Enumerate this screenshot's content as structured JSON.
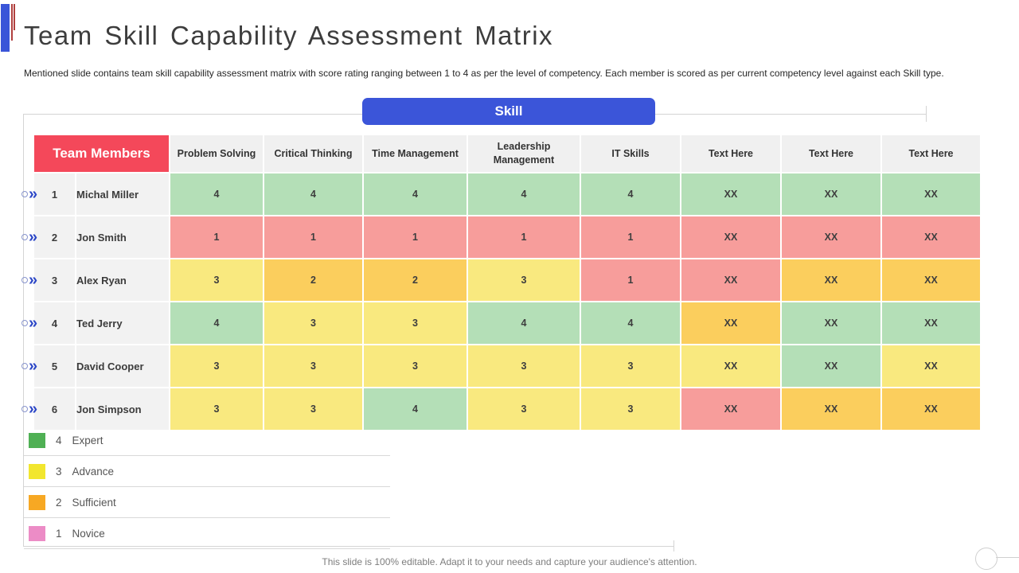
{
  "slide": {
    "title": "Team Skill Capability Assessment Matrix",
    "subtitle": "Mentioned slide contains team skill capability assessment matrix with score rating ranging between 1 to 4 as per the level of competency. Each member is scored as per current competency level against each Skill type.",
    "footer_note": "This slide is 100% editable. Adapt it to your needs and capture your audience's attention."
  },
  "skill_banner": {
    "label": "Skill"
  },
  "table": {
    "members_header": "Team Members",
    "columns": [
      "Problem Solving",
      "Critical Thinking",
      "Time Management",
      "Leadership Management",
      "IT Skills",
      "Text Here",
      "Text Here",
      "Text Here"
    ],
    "rows": [
      {
        "num": "1",
        "name": "Michal Miller",
        "cells": [
          {
            "value": "4",
            "level": "expert"
          },
          {
            "value": "4",
            "level": "expert"
          },
          {
            "value": "4",
            "level": "expert"
          },
          {
            "value": "4",
            "level": "expert"
          },
          {
            "value": "4",
            "level": "expert"
          },
          {
            "value": "XX",
            "level": "expert"
          },
          {
            "value": "XX",
            "level": "expert"
          },
          {
            "value": "XX",
            "level": "expert"
          }
        ]
      },
      {
        "num": "2",
        "name": "Jon Smith",
        "cells": [
          {
            "value": "1",
            "level": "novice"
          },
          {
            "value": "1",
            "level": "novice"
          },
          {
            "value": "1",
            "level": "novice"
          },
          {
            "value": "1",
            "level": "novice"
          },
          {
            "value": "1",
            "level": "novice"
          },
          {
            "value": "XX",
            "level": "novice"
          },
          {
            "value": "XX",
            "level": "novice"
          },
          {
            "value": "XX",
            "level": "novice"
          }
        ]
      },
      {
        "num": "3",
        "name": "Alex Ryan",
        "cells": [
          {
            "value": "3",
            "level": "advance"
          },
          {
            "value": "2",
            "level": "sufficient"
          },
          {
            "value": "2",
            "level": "sufficient"
          },
          {
            "value": "3",
            "level": "advance"
          },
          {
            "value": "1",
            "level": "novice"
          },
          {
            "value": "XX",
            "level": "novice"
          },
          {
            "value": "XX",
            "level": "sufficient"
          },
          {
            "value": "XX",
            "level": "sufficient"
          }
        ]
      },
      {
        "num": "4",
        "name": "Ted Jerry",
        "cells": [
          {
            "value": "4",
            "level": "expert"
          },
          {
            "value": "3",
            "level": "advance"
          },
          {
            "value": "3",
            "level": "advance"
          },
          {
            "value": "4",
            "level": "expert"
          },
          {
            "value": "4",
            "level": "expert"
          },
          {
            "value": "XX",
            "level": "sufficient"
          },
          {
            "value": "XX",
            "level": "expert"
          },
          {
            "value": "XX",
            "level": "expert"
          }
        ]
      },
      {
        "num": "5",
        "name": "David Cooper",
        "cells": [
          {
            "value": "3",
            "level": "advance"
          },
          {
            "value": "3",
            "level": "advance"
          },
          {
            "value": "3",
            "level": "advance"
          },
          {
            "value": "3",
            "level": "advance"
          },
          {
            "value": "3",
            "level": "advance"
          },
          {
            "value": "XX",
            "level": "advance"
          },
          {
            "value": "XX",
            "level": "expert"
          },
          {
            "value": "XX",
            "level": "advance"
          }
        ]
      },
      {
        "num": "6",
        "name": "Jon Simpson",
        "cells": [
          {
            "value": "3",
            "level": "advance"
          },
          {
            "value": "3",
            "level": "advance"
          },
          {
            "value": "4",
            "level": "expert"
          },
          {
            "value": "3",
            "level": "advance"
          },
          {
            "value": "3",
            "level": "advance"
          },
          {
            "value": "XX",
            "level": "novice"
          },
          {
            "value": "XX",
            "level": "sufficient"
          },
          {
            "value": "XX",
            "level": "sufficient"
          }
        ]
      }
    ]
  },
  "legend": {
    "items": [
      {
        "score": "4",
        "label": "Expert",
        "color": "#4fb054"
      },
      {
        "score": "3",
        "label": "Advance",
        "color": "#f2e62e"
      },
      {
        "score": "2",
        "label": "Sufficient",
        "color": "#f7a823"
      },
      {
        "score": "1",
        "label": "Novice",
        "color": "#ec8cc6"
      }
    ]
  },
  "levels": {
    "expert": "#b4dfb7",
    "advance": "#f9e97f",
    "sufficient": "#fbce5d",
    "novice": "#f79d9b"
  },
  "colors": {
    "members_header_bg": "#f4485a",
    "skill_banner_bg": "#3b55d9",
    "accent_bar_blue": "#3a55d8",
    "accent_line_red": "#b0403e"
  },
  "icons": {
    "row_pointer_glyph": "»"
  }
}
